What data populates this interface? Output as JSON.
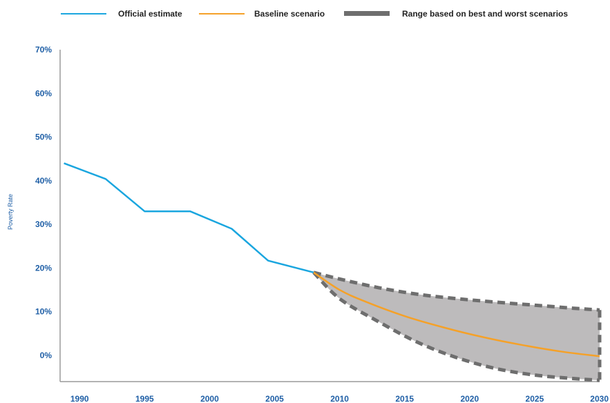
{
  "chart_data": {
    "type": "line",
    "ylabel": "Poverty Rate",
    "xlabel": "",
    "xlim": [
      1988.5,
      2030
    ],
    "ylim": [
      -6,
      70
    ],
    "x_ticks": [
      "1990",
      "1995",
      "2000",
      "2005",
      "2010",
      "2015",
      "2020",
      "2025",
      "2030"
    ],
    "y_ticks": [
      "0%",
      "10%",
      "20%",
      "30%",
      "40%",
      "50%",
      "60%",
      "70%"
    ],
    "legend": {
      "placement": "top",
      "items": [
        {
          "label": "Official estimate",
          "color": "#1aa6df",
          "style": "line"
        },
        {
          "label": "Baseline scenario",
          "color": "#f5a128",
          "style": "line"
        },
        {
          "label": "Range based on best and worst scenarios",
          "color": "#6e6e6e",
          "style": "dashed-band"
        }
      ]
    },
    "series": [
      {
        "name": "Official estimate",
        "color": "#1aa6df",
        "x": [
          1988.8,
          1992,
          1995,
          1998.5,
          2001.7,
          2004.5,
          2008
        ],
        "y": [
          44,
          40.4,
          33,
          33,
          29,
          21.7,
          19
        ]
      },
      {
        "name": "Baseline scenario",
        "color": "#f5a128",
        "x": [
          2008,
          2010,
          2012,
          2015,
          2018,
          2021,
          2024,
          2027,
          2030
        ],
        "y": [
          19,
          15,
          12.3,
          9,
          6.4,
          4.2,
          2.4,
          0.9,
          -0.2
        ]
      },
      {
        "name": "Range based on best and worst scenarios",
        "color": "#6e6e6e",
        "fill": "#bdbbbc",
        "x": [
          2008,
          2010,
          2013,
          2016,
          2019,
          2022,
          2025,
          2028,
          2030
        ],
        "upper": [
          19,
          17.5,
          15.5,
          14,
          13,
          12.2,
          11.5,
          10.8,
          10.4
        ],
        "lower": [
          19,
          13,
          7.7,
          3,
          -0.5,
          -3,
          -4.5,
          -5.3,
          -5.7
        ]
      }
    ]
  }
}
